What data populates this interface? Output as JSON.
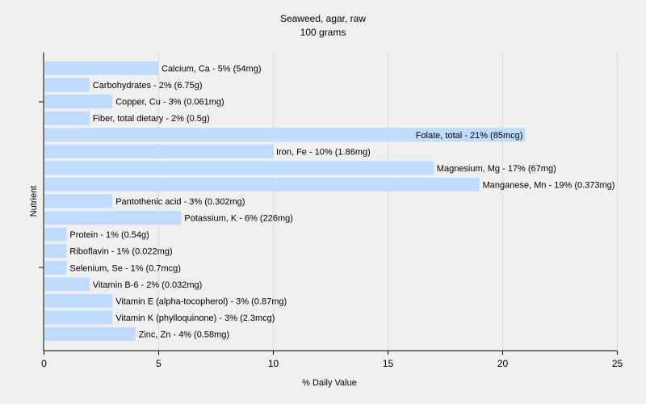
{
  "chart_data": {
    "type": "bar",
    "orientation": "horizontal",
    "title": "Seaweed, agar, raw",
    "subtitle": "100 grams",
    "xlabel": "% Daily Value",
    "ylabel": "Nutrient",
    "xlim": [
      0,
      25
    ],
    "xticks": [
      0,
      5,
      10,
      15,
      20,
      25
    ],
    "grid": true,
    "bar_color": "#bfdcff",
    "categories": [
      "Calcium, Ca",
      "Carbohydrates",
      "Copper, Cu",
      "Fiber, total dietary",
      "Folate, total",
      "Iron, Fe",
      "Magnesium, Mg",
      "Manganese, Mn",
      "Pantothenic acid",
      "Potassium, K",
      "Protein",
      "Riboflavin",
      "Selenium, Se",
      "Vitamin B-6",
      "Vitamin E (alpha-tocopherol)",
      "Vitamin K (phylloquinone)",
      "Zinc, Zn"
    ],
    "values": [
      5,
      2,
      3,
      2,
      21,
      10,
      17,
      19,
      3,
      6,
      1,
      1,
      1,
      2,
      3,
      3,
      4
    ],
    "labels": [
      "Calcium, Ca - 5% (54mg)",
      "Carbohydrates - 2% (6.75g)",
      "Copper, Cu - 3% (0.061mg)",
      "Fiber, total dietary - 2% (0.5g)",
      "Folate, total - 21% (85mcg)",
      "Iron, Fe - 10% (1.86mg)",
      "Magnesium, Mg - 17% (67mg)",
      "Manganese, Mn - 19% (0.373mg)",
      "Pantothenic acid - 3% (0.302mg)",
      "Potassium, K - 6% (226mg)",
      "Protein - 1% (0.54g)",
      "Riboflavin - 1% (0.022mg)",
      "Selenium, Se - 1% (0.7mcg)",
      "Vitamin B-6 - 2% (0.032mg)",
      "Vitamin E (alpha-tocopherol) - 3% (0.87mg)",
      "Vitamin K (phylloquinone) - 3% (2.3mcg)",
      "Zinc, Zn - 4% (0.58mg)"
    ]
  }
}
